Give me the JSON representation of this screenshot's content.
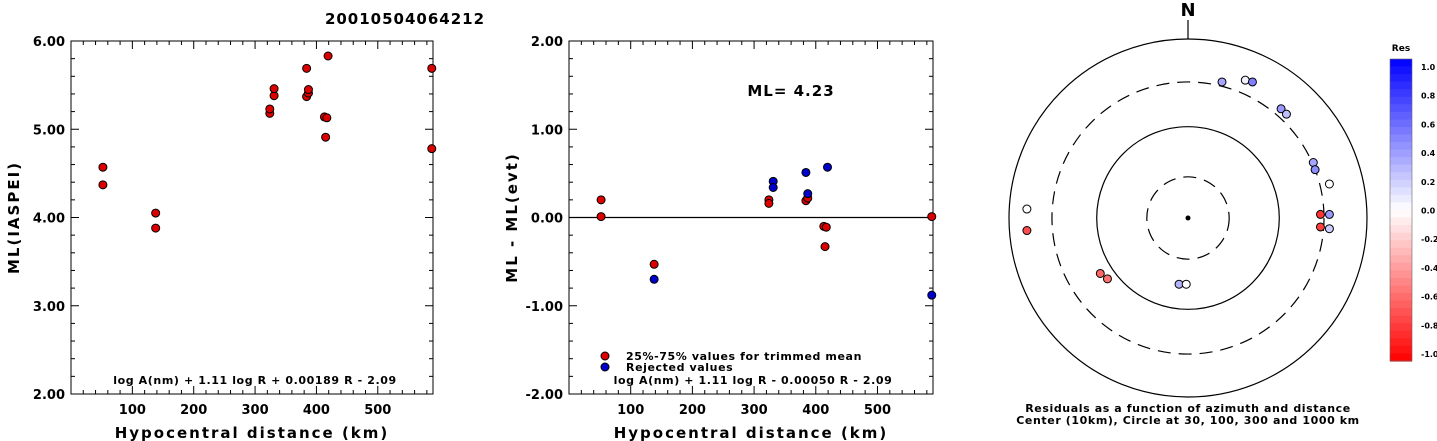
{
  "title": "20010504064212",
  "chart_data": [
    {
      "type": "scatter",
      "name": "ml-vs-distance",
      "xlabel": "Hypocentral distance (km)",
      "ylabel": "ML(IASPEI)",
      "xlim": [
        0,
        590
      ],
      "ylim": [
        2.0,
        6.0
      ],
      "xticks": [
        100,
        200,
        300,
        400,
        500
      ],
      "yticks": [
        2.0,
        3.0,
        4.0,
        5.0,
        6.0
      ],
      "ytick_labels": [
        "2.00",
        "3.00",
        "4.00",
        "5.00",
        "6.00"
      ],
      "formula": "log A(nm) + 1.11 log R + 0.00189 R - 2.09",
      "points": [
        {
          "x": 52,
          "y": 4.57
        },
        {
          "x": 52,
          "y": 4.37
        },
        {
          "x": 138,
          "y": 4.05
        },
        {
          "x": 138,
          "y": 3.88
        },
        {
          "x": 324,
          "y": 5.18
        },
        {
          "x": 324,
          "y": 5.23
        },
        {
          "x": 331,
          "y": 5.38
        },
        {
          "x": 331,
          "y": 5.46
        },
        {
          "x": 384,
          "y": 5.69
        },
        {
          "x": 384,
          "y": 5.37
        },
        {
          "x": 387,
          "y": 5.41
        },
        {
          "x": 387,
          "y": 5.45
        },
        {
          "x": 413,
          "y": 5.14
        },
        {
          "x": 417,
          "y": 5.13
        },
        {
          "x": 415,
          "y": 4.91
        },
        {
          "x": 419,
          "y": 5.83
        },
        {
          "x": 588,
          "y": 5.69
        },
        {
          "x": 588,
          "y": 4.78
        }
      ]
    },
    {
      "type": "scatter",
      "name": "residual-vs-distance",
      "xlabel": "Hypocentral distance (km)",
      "ylabel": "ML - ML(evt)",
      "xlim": [
        0,
        590
      ],
      "ylim": [
        -2.0,
        2.0
      ],
      "xticks": [
        100,
        200,
        300,
        400,
        500
      ],
      "yticks": [
        -2.0,
        -1.0,
        0.0,
        1.0,
        2.0
      ],
      "ytick_labels": [
        "-2.00",
        "-1.00",
        "0.00",
        "1.00",
        "2.00"
      ],
      "annotation": "ML=  4.23",
      "formula": "log A(nm) + 1.11 log R - 0.00050 R - 2.09",
      "legend": [
        {
          "label": "25%-75% values for trimmed mean",
          "color": "#dd0000"
        },
        {
          "label": "Rejected values",
          "color": "#0000cc"
        }
      ],
      "series": [
        {
          "color": "#dd0000",
          "points": [
            {
              "x": 52,
              "y": 0.2
            },
            {
              "x": 52,
              "y": 0.01
            },
            {
              "x": 138,
              "y": -0.53
            },
            {
              "x": 324,
              "y": 0.2
            },
            {
              "x": 324,
              "y": 0.16
            },
            {
              "x": 384,
              "y": 0.19
            },
            {
              "x": 387,
              "y": 0.22
            },
            {
              "x": 413,
              "y": -0.1
            },
            {
              "x": 417,
              "y": -0.11
            },
            {
              "x": 415,
              "y": -0.33
            },
            {
              "x": 588,
              "y": 0.01
            }
          ]
        },
        {
          "color": "#0000cc",
          "points": [
            {
              "x": 138,
              "y": -0.7
            },
            {
              "x": 331,
              "y": 0.41
            },
            {
              "x": 331,
              "y": 0.34
            },
            {
              "x": 384,
              "y": 0.51
            },
            {
              "x": 387,
              "y": 0.27
            },
            {
              "x": 419,
              "y": 0.57
            },
            {
              "x": 588,
              "y": -0.88
            }
          ]
        }
      ]
    },
    {
      "type": "scatter",
      "name": "azimuth-residual-map",
      "north_label": "N",
      "caption_line1": "Residuals as a function of azimuth and distance",
      "caption_line2": "Center (10km), Circle at 30, 100, 300 and 1000 km",
      "colorbar_title": "Res",
      "colorbar_labels": [
        "1.0",
        "0.8",
        "0.6",
        "0.4",
        "0.2",
        "0.0",
        "-0.2",
        "-0.4",
        "-0.6",
        "-0.8",
        "-1.0"
      ],
      "rings": [
        {
          "radius_fraction": 0.23,
          "style": "dashed"
        },
        {
          "radius_fraction": 0.51,
          "style": "solid"
        },
        {
          "radius_fraction": 0.76,
          "style": "dashed"
        },
        {
          "radius_fraction": 1.0,
          "style": "solid"
        }
      ],
      "stations": [
        {
          "dx": -0.9,
          "dy": -0.05,
          "res": 0.0
        },
        {
          "dx": -0.9,
          "dy": 0.07,
          "res": -0.7
        },
        {
          "dx": -0.49,
          "dy": 0.31,
          "res": -0.6
        },
        {
          "dx": -0.45,
          "dy": 0.34,
          "res": -0.55
        },
        {
          "dx": -0.05,
          "dy": 0.37,
          "res": 0.3
        },
        {
          "dx": -0.01,
          "dy": 0.37,
          "res": 0.0
        },
        {
          "dx": 0.19,
          "dy": -0.76,
          "res": 0.35
        },
        {
          "dx": 0.32,
          "dy": -0.77,
          "res": 0.05
        },
        {
          "dx": 0.36,
          "dy": -0.76,
          "res": 0.5
        },
        {
          "dx": 0.52,
          "dy": -0.61,
          "res": 0.4
        },
        {
          "dx": 0.55,
          "dy": -0.58,
          "res": 0.25
        },
        {
          "dx": 0.7,
          "dy": -0.31,
          "res": 0.35
        },
        {
          "dx": 0.71,
          "dy": -0.27,
          "res": 0.45
        },
        {
          "dx": 0.79,
          "dy": -0.19,
          "res": 0.0
        },
        {
          "dx": 0.74,
          "dy": -0.02,
          "res": -0.8
        },
        {
          "dx": 0.74,
          "dy": 0.05,
          "res": -0.75
        },
        {
          "dx": 0.79,
          "dy": -0.02,
          "res": 0.4
        },
        {
          "dx": 0.79,
          "dy": 0.06,
          "res": 0.2
        }
      ]
    }
  ]
}
